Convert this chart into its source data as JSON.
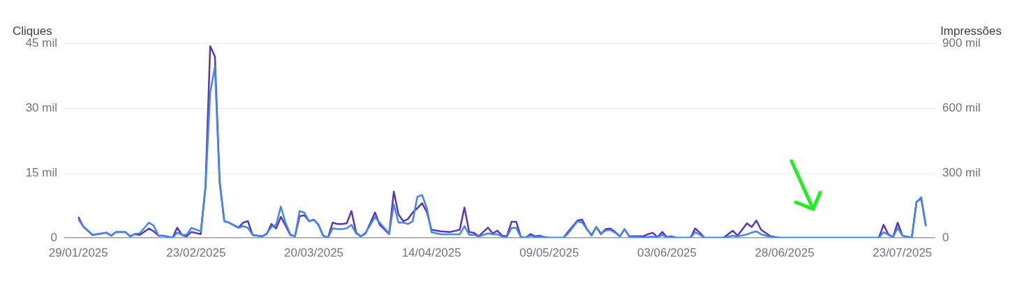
{
  "chart_data": {
    "type": "line",
    "ylabel": "Cliques",
    "y2label": "Impressões",
    "x": [
      "2025-01-29",
      "2025-01-30",
      "2025-02-01",
      "2025-02-03",
      "2025-02-04",
      "2025-02-05",
      "2025-02-06",
      "2025-02-08",
      "2025-02-09",
      "2025-02-10",
      "2025-02-11",
      "2025-02-13",
      "2025-02-14",
      "2025-02-15",
      "2025-02-16",
      "2025-02-18",
      "2025-02-19",
      "2025-02-20",
      "2025-02-21",
      "2025-02-22",
      "2025-02-24",
      "2025-02-25",
      "2025-02-26",
      "2025-02-27",
      "2025-02-28",
      "2025-03-01",
      "2025-03-02",
      "2025-03-04",
      "2025-03-05",
      "2025-03-06",
      "2025-03-07",
      "2025-03-09",
      "2025-03-10",
      "2025-03-11",
      "2025-03-12",
      "2025-03-13",
      "2025-03-14",
      "2025-03-15",
      "2025-03-16",
      "2025-03-17",
      "2025-03-18",
      "2025-03-19",
      "2025-03-20",
      "2025-03-21",
      "2025-03-22",
      "2025-03-23",
      "2025-03-24",
      "2025-03-25",
      "2025-03-26",
      "2025-03-27",
      "2025-03-28",
      "2025-03-29",
      "2025-03-30",
      "2025-03-31",
      "2025-04-02",
      "2025-04-03",
      "2025-04-05",
      "2025-04-06",
      "2025-04-07",
      "2025-04-08",
      "2025-04-09",
      "2025-04-10",
      "2025-04-11",
      "2025-04-12",
      "2025-04-13",
      "2025-04-14",
      "2025-04-16",
      "2025-04-18",
      "2025-04-20",
      "2025-04-21",
      "2025-04-22",
      "2025-04-23",
      "2025-04-24",
      "2025-04-26",
      "2025-04-27",
      "2025-04-28",
      "2025-04-29",
      "2025-04-30",
      "2025-05-01",
      "2025-05-02",
      "2025-05-03",
      "2025-05-04",
      "2025-05-05",
      "2025-05-06",
      "2025-05-07",
      "2025-05-08",
      "2025-05-09",
      "2025-05-11",
      "2025-05-12",
      "2025-05-13",
      "2025-05-15",
      "2025-05-16",
      "2025-05-17",
      "2025-05-18",
      "2025-05-19",
      "2025-05-20",
      "2025-05-21",
      "2025-05-22",
      "2025-05-23",
      "2025-05-24",
      "2025-05-25",
      "2025-05-26",
      "2025-05-29",
      "2025-05-30",
      "2025-05-31",
      "2025-06-01",
      "2025-06-02",
      "2025-06-03",
      "2025-06-04",
      "2025-06-05",
      "2025-06-07",
      "2025-06-08",
      "2025-06-09",
      "2025-06-10",
      "2025-06-11",
      "2025-06-15",
      "2025-06-17",
      "2025-06-18",
      "2025-06-20",
      "2025-06-21",
      "2025-06-22",
      "2025-06-23",
      "2025-06-25",
      "2025-06-26",
      "2025-06-27",
      "2025-07-18",
      "2025-07-19",
      "2025-07-20",
      "2025-07-21",
      "2025-07-22",
      "2025-07-23",
      "2025-07-25",
      "2025-07-26",
      "2025-07-27",
      "2025-07-28"
    ],
    "series": [
      {
        "color": "#5e35b1",
        "axis": "y2",
        "values": [
          97,
          53,
          13,
          20,
          23,
          10,
          27,
          27,
          7,
          17,
          13,
          43,
          30,
          10,
          10,
          0,
          47,
          13,
          7,
          27,
          17,
          237,
          886,
          839,
          264,
          77,
          70,
          47,
          70,
          77,
          13,
          7,
          17,
          64,
          43,
          97,
          57,
          13,
          7,
          100,
          104,
          77,
          84,
          60,
          10,
          0,
          70,
          64,
          64,
          67,
          124,
          23,
          7,
          20,
          117,
          60,
          17,
          214,
          107,
          77,
          87,
          117,
          137,
          160,
          120,
          37,
          30,
          27,
          37,
          140,
          27,
          23,
          7,
          47,
          20,
          33,
          10,
          7,
          74,
          74,
          3,
          0,
          17,
          7,
          10,
          3,
          0,
          0,
          0,
          27,
          80,
          84,
          40,
          13,
          50,
          17,
          40,
          43,
          27,
          7,
          40,
          7,
          7,
          17,
          23,
          3,
          27,
          3,
          7,
          0,
          0,
          0,
          43,
          23,
          0,
          0,
          33,
          10,
          67,
          50,
          80,
          37,
          7,
          3,
          0,
          0,
          60,
          17,
          3,
          70,
          10,
          0,
          167,
          181,
          54
        ]
      },
      {
        "color": "#4285f4",
        "axis": "y",
        "values": [
          4.3,
          2.7,
          0.7,
          1.0,
          1.2,
          0.5,
          1.3,
          1.3,
          0.3,
          0.9,
          1.0,
          3.5,
          2.8,
          0.5,
          0.5,
          0,
          1.2,
          0.7,
          0.7,
          2.3,
          1.5,
          11.4,
          33.6,
          39.6,
          12.7,
          3.8,
          3.5,
          2.3,
          2.7,
          2.3,
          0.7,
          0.3,
          1,
          2.5,
          3,
          7.2,
          3.5,
          0.8,
          0.3,
          6.2,
          5.8,
          3.8,
          4.2,
          3,
          0.5,
          0,
          2.2,
          2,
          2,
          2.2,
          3,
          1,
          0.3,
          1.2,
          4.8,
          3.5,
          1,
          7.7,
          3.5,
          3.5,
          3.2,
          3.8,
          9.5,
          9.9,
          6.9,
          1.3,
          0.8,
          0.8,
          0.8,
          2.7,
          0.7,
          0.7,
          0.3,
          1,
          0.8,
          0.8,
          0.3,
          0.2,
          2.3,
          2.3,
          0.1,
          0,
          0.5,
          0.2,
          0.3,
          0.1,
          0,
          0,
          0,
          1,
          3.8,
          3.5,
          2,
          0.5,
          2.5,
          1,
          1.7,
          1.8,
          1.2,
          0.3,
          2,
          0.3,
          0.1,
          0.2,
          0.3,
          0.1,
          0.7,
          0.1,
          0.2,
          0,
          0,
          0,
          1.3,
          0.7,
          0,
          0,
          0.5,
          0.3,
          0.8,
          1.2,
          1.5,
          0.8,
          0.2,
          0.1,
          0,
          0,
          1.3,
          0.7,
          0.1,
          2.3,
          0.5,
          0,
          8.2,
          9.4,
          2.7
        ]
      }
    ],
    "xlim": [
      "2025-01-26",
      "2025-07-30"
    ],
    "xticks": [
      {
        "value": "2025-01-29",
        "label": "29/01/2025"
      },
      {
        "value": "2025-02-23",
        "label": "23/02/2025"
      },
      {
        "value": "2025-03-20",
        "label": "20/03/2025"
      },
      {
        "value": "2025-04-14",
        "label": "14/04/2025"
      },
      {
        "value": "2025-05-09",
        "label": "09/05/2025"
      },
      {
        "value": "2025-06-03",
        "label": "03/06/2025"
      },
      {
        "value": "2025-06-28",
        "label": "28/06/2025"
      },
      {
        "value": "2025-07-23",
        "label": "23/07/2025"
      }
    ],
    "ylim": [
      0,
      45
    ],
    "yticks": [
      0,
      {
        "value": 15,
        "label": "15 mil"
      },
      {
        "value": 30,
        "label": "30 mil"
      },
      {
        "value": 45,
        "label": "45 mil"
      }
    ],
    "y2lim": [
      0,
      900
    ],
    "y2ticks": [
      0,
      {
        "value": 300,
        "label": "300 mil"
      },
      {
        "value": 600,
        "label": "600 mil"
      },
      {
        "value": 900,
        "label": "900 mil"
      }
    ],
    "grid": "y",
    "legend": false,
    "marker": "none",
    "line_style": "solid"
  }
}
